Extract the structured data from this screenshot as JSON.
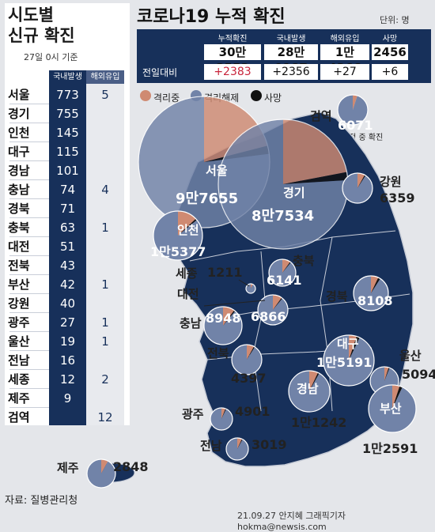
{
  "panel": {
    "title_line1": "시도별",
    "title_line2": "신규 확진",
    "date": "27일 0시 기준",
    "col_domestic": "국내발생",
    "col_overseas": "해외유입",
    "rows": [
      {
        "region": "서울",
        "domestic": "773",
        "overseas": "5"
      },
      {
        "region": "경기",
        "domestic": "755",
        "overseas": ""
      },
      {
        "region": "인천",
        "domestic": "145",
        "overseas": ""
      },
      {
        "region": "대구",
        "domestic": "115",
        "overseas": ""
      },
      {
        "region": "경남",
        "domestic": "101",
        "overseas": ""
      },
      {
        "region": "충남",
        "domestic": "74",
        "overseas": "4"
      },
      {
        "region": "경북",
        "domestic": "71",
        "overseas": ""
      },
      {
        "region": "충북",
        "domestic": "63",
        "overseas": "1"
      },
      {
        "region": "대전",
        "domestic": "51",
        "overseas": ""
      },
      {
        "region": "전북",
        "domestic": "43",
        "overseas": ""
      },
      {
        "region": "부산",
        "domestic": "42",
        "overseas": "1"
      },
      {
        "region": "강원",
        "domestic": "40",
        "overseas": ""
      },
      {
        "region": "광주",
        "domestic": "27",
        "overseas": "1"
      },
      {
        "region": "울산",
        "domestic": "19",
        "overseas": "1"
      },
      {
        "region": "전남",
        "domestic": "16",
        "overseas": ""
      },
      {
        "region": "세종",
        "domestic": "12",
        "overseas": "2"
      },
      {
        "region": "제주",
        "domestic": "9",
        "overseas": ""
      },
      {
        "region": "검역",
        "domestic": "",
        "overseas": "12"
      }
    ]
  },
  "header": {
    "title_part1": "코로나19",
    "title_part2": "누적 확진",
    "unit": "단위: 명"
  },
  "summary": {
    "labels": [
      "누적확진",
      "국내발생",
      "해외유입",
      "사망"
    ],
    "values": [
      "30만3553",
      "28만9187",
      "1만4366",
      "2456"
    ],
    "diff_label": "전일대비",
    "diffs": [
      "+2383",
      "+2356",
      "+27",
      "+6"
    ]
  },
  "legend": {
    "items": [
      {
        "label": "격리중",
        "color": "#cf8a72"
      },
      {
        "label": "격리해제",
        "color": "#7183a8"
      },
      {
        "label": "사망",
        "color": "#111111"
      }
    ]
  },
  "note": "※입국 과정 중 확진",
  "chart_data": {
    "type": "pie",
    "title": "코로나19 누적 확진",
    "series_names": [
      "격리중",
      "격리해제",
      "사망"
    ],
    "regions": [
      {
        "name": "서울",
        "total": "9만7655",
        "isolating_frac": 0.21,
        "released_frac": 0.77,
        "death_frac": 0.02
      },
      {
        "name": "경기",
        "total": "8만7534",
        "isolating_frac": 0.22,
        "released_frac": 0.76,
        "death_frac": 0.02
      },
      {
        "name": "인천",
        "total": "1만5377",
        "isolating_frac": 0.13,
        "released_frac": 0.86,
        "death_frac": 0.01
      },
      {
        "name": "검역",
        "total": "6071",
        "isolating_frac": 0.05,
        "released_frac": 0.95,
        "death_frac": 0.0
      },
      {
        "name": "강원",
        "total": "6359",
        "isolating_frac": 0.08,
        "released_frac": 0.91,
        "death_frac": 0.01
      },
      {
        "name": "충북",
        "total": "6141",
        "isolating_frac": 0.1,
        "released_frac": 0.89,
        "death_frac": 0.01
      },
      {
        "name": "세종",
        "total": "1211",
        "isolating_frac": 0.08,
        "released_frac": 0.92,
        "death_frac": 0.0
      },
      {
        "name": "대전",
        "total": "6866",
        "isolating_frac": 0.1,
        "released_frac": 0.89,
        "death_frac": 0.01
      },
      {
        "name": "충남",
        "total": "8948",
        "isolating_frac": 0.1,
        "released_frac": 0.89,
        "death_frac": 0.01
      },
      {
        "name": "경북",
        "total": "8108",
        "isolating_frac": 0.07,
        "released_frac": 0.91,
        "death_frac": 0.02
      },
      {
        "name": "전북",
        "total": "4397",
        "isolating_frac": 0.08,
        "released_frac": 0.91,
        "death_frac": 0.01
      },
      {
        "name": "대구",
        "total": "1만5191",
        "isolating_frac": 0.05,
        "released_frac": 0.93,
        "death_frac": 0.02
      },
      {
        "name": "울산",
        "total": "5094",
        "isolating_frac": 0.05,
        "released_frac": 0.94,
        "death_frac": 0.01
      },
      {
        "name": "경남",
        "total": "1만1242",
        "isolating_frac": 0.07,
        "released_frac": 0.92,
        "death_frac": 0.01
      },
      {
        "name": "광주",
        "total": "4901",
        "isolating_frac": 0.06,
        "released_frac": 0.93,
        "death_frac": 0.01
      },
      {
        "name": "부산",
        "total": "1만2591",
        "isolating_frac": 0.05,
        "released_frac": 0.93,
        "death_frac": 0.02
      },
      {
        "name": "전남",
        "total": "3019",
        "isolating_frac": 0.07,
        "released_frac": 0.92,
        "death_frac": 0.01
      },
      {
        "name": "제주",
        "total": "2848",
        "isolating_frac": 0.08,
        "released_frac": 0.92,
        "death_frac": 0.0
      }
    ]
  },
  "source": "자료: 질병관리청",
  "credit": "21.09.27 안지혜 그래픽기자 hokma@newsis.com"
}
